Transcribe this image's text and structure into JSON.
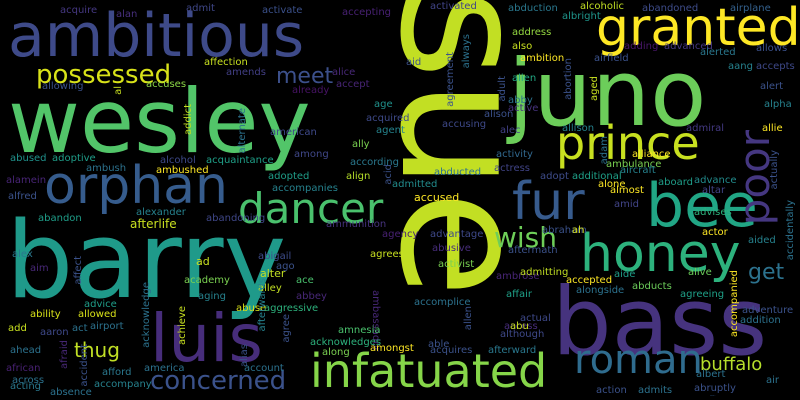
{
  "words": [
    {
      "text": "sue",
      "color": "#c2df23"
    },
    {
      "text": "barry",
      "color": "#1f9a8a"
    },
    {
      "text": "bass",
      "color": "#46337e"
    },
    {
      "text": "wesley",
      "color": "#52c569"
    },
    {
      "text": "juno",
      "color": "#6ccd5a"
    },
    {
      "text": "ambitious",
      "color": "#3e4a89"
    },
    {
      "text": "luis",
      "color": "#472d7b"
    },
    {
      "text": "orphan",
      "color": "#365c8d"
    },
    {
      "text": "infatuated",
      "color": "#86d549"
    },
    {
      "text": "granted",
      "color": "#fde725"
    },
    {
      "text": "bee",
      "color": "#21a685"
    },
    {
      "text": "prince",
      "color": "#c8e020"
    },
    {
      "text": "honey",
      "color": "#2db27d"
    },
    {
      "text": "roman",
      "color": "#2f6c8e"
    },
    {
      "text": "dancer",
      "color": "#4ac16d"
    },
    {
      "text": "fur",
      "color": "#375b8d"
    },
    {
      "text": "poor",
      "color": "#453781"
    },
    {
      "text": "possessed",
      "color": "#d8e219"
    },
    {
      "text": "concerned",
      "color": "#3b528b"
    },
    {
      "text": "wish",
      "color": "#6ece58"
    },
    {
      "text": "meet",
      "color": "#3c508b"
    },
    {
      "text": "get",
      "color": "#2c728e"
    },
    {
      "text": "buffalo",
      "color": "#b5de2b"
    },
    {
      "text": "thug",
      "color": "#c0df25"
    },
    {
      "text": "acquire",
      "color": "#453882"
    },
    {
      "text": "alan",
      "color": "#472f7d"
    },
    {
      "text": "admit",
      "color": "#3f4788"
    },
    {
      "text": "activate",
      "color": "#3b518b"
    },
    {
      "text": "accepting",
      "color": "#482173"
    },
    {
      "text": "activated",
      "color": "#414487"
    },
    {
      "text": "abduction",
      "color": "#2a788e"
    },
    {
      "text": "alcoholic",
      "color": "#c2df23"
    },
    {
      "text": "abandoned",
      "color": "#3e4c8a"
    },
    {
      "text": "airplane",
      "color": "#34618d"
    },
    {
      "text": "albright",
      "color": "#1f958b"
    },
    {
      "text": "address",
      "color": "#93d741"
    },
    {
      "text": "adding",
      "color": "#481769"
    },
    {
      "text": "advanced",
      "color": "#453781"
    },
    {
      "text": "alerted",
      "color": "#2a788e"
    },
    {
      "text": "allows",
      "color": "#3b518b"
    },
    {
      "text": "airfield",
      "color": "#3b528b"
    },
    {
      "text": "aang",
      "color": "#26828e"
    },
    {
      "text": "accepts",
      "color": "#3e4989"
    },
    {
      "text": "ambition",
      "color": "#fde725"
    },
    {
      "text": "alert",
      "color": "#3b528b"
    },
    {
      "text": "accused",
      "color": "#fde725"
    },
    {
      "text": "affection",
      "color": "#c8e020"
    },
    {
      "text": "amends",
      "color": "#423f85"
    },
    {
      "text": "accuses",
      "color": "#8bd646"
    },
    {
      "text": "allowing",
      "color": "#3b528b"
    },
    {
      "text": "alice",
      "color": "#482878"
    },
    {
      "text": "accept",
      "color": "#482576"
    },
    {
      "text": "already",
      "color": "#471365"
    },
    {
      "text": "aid",
      "color": "#3b528b"
    },
    {
      "text": "age",
      "color": "#20928c"
    },
    {
      "text": "acquired",
      "color": "#3e4a89"
    },
    {
      "text": "accusing",
      "color": "#3e4989"
    },
    {
      "text": "agent",
      "color": "#25848e"
    },
    {
      "text": "alison",
      "color": "#3b518b"
    },
    {
      "text": "alec",
      "color": "#424086"
    },
    {
      "text": "abby",
      "color": "#2c728e"
    },
    {
      "text": "alien",
      "color": "#22a884"
    },
    {
      "text": "active",
      "color": "#46337e"
    },
    {
      "text": "allison",
      "color": "#26828e"
    },
    {
      "text": "admiral",
      "color": "#443983"
    },
    {
      "text": "alliance",
      "color": "#fde725"
    },
    {
      "text": "allie",
      "color": "#fde725"
    },
    {
      "text": "american",
      "color": "#3e4989"
    },
    {
      "text": "among",
      "color": "#3f4788"
    },
    {
      "text": "ally",
      "color": "#7ad151"
    },
    {
      "text": "activity",
      "color": "#31688e"
    },
    {
      "text": "actress",
      "color": "#414487"
    },
    {
      "text": "ambulance",
      "color": "#7ad151"
    },
    {
      "text": "aircraft",
      "color": "#26828e"
    },
    {
      "text": "abused",
      "color": "#20928c"
    },
    {
      "text": "adoptive",
      "color": "#1f9e89"
    },
    {
      "text": "alcohol",
      "color": "#3e4989"
    },
    {
      "text": "acquaintance",
      "color": "#1fa088"
    },
    {
      "text": "according",
      "color": "#2a788e"
    },
    {
      "text": "adopted",
      "color": "#1f9e89"
    },
    {
      "text": "accompanies",
      "color": "#26828e"
    },
    {
      "text": "align",
      "color": "#b5de2b"
    },
    {
      "text": "admitted",
      "color": "#228c8d"
    },
    {
      "text": "abducted",
      "color": "#2c728e"
    },
    {
      "text": "adopt",
      "color": "#3e4c8a"
    },
    {
      "text": "additional",
      "color": "#1fa188"
    },
    {
      "text": "almost",
      "color": "#fde725"
    },
    {
      "text": "aboard",
      "color": "#1f9e89"
    },
    {
      "text": "advance",
      "color": "#228c8d"
    },
    {
      "text": "altar",
      "color": "#414487"
    },
    {
      "text": "alpha",
      "color": "#26828e"
    },
    {
      "text": "alamein",
      "color": "#482576"
    },
    {
      "text": "ambush",
      "color": "#2c728e"
    },
    {
      "text": "ambushed",
      "color": "#fde725"
    },
    {
      "text": "alfred",
      "color": "#3b528b"
    },
    {
      "text": "acting",
      "color": "#2a788e"
    },
    {
      "text": "alone",
      "color": "#fde725"
    },
    {
      "text": "amid",
      "color": "#414487"
    },
    {
      "text": "advises",
      "color": "#2db27d"
    },
    {
      "text": "abandon",
      "color": "#1f9e89"
    },
    {
      "text": "alexander",
      "color": "#26828e"
    },
    {
      "text": "abandoning",
      "color": "#3f4788"
    },
    {
      "text": "afterlife",
      "color": "#c8e020"
    },
    {
      "text": "ammunition",
      "color": "#46337e"
    },
    {
      "text": "agency",
      "color": "#482173"
    },
    {
      "text": "advantage",
      "color": "#3e4989"
    },
    {
      "text": "abraham",
      "color": "#3b528b"
    },
    {
      "text": "ah",
      "color": "#d8e219"
    },
    {
      "text": "actor",
      "color": "#fde725"
    },
    {
      "text": "aided",
      "color": "#26828e"
    },
    {
      "text": "alex",
      "color": "#2a788e"
    },
    {
      "text": "aim",
      "color": "#482878"
    },
    {
      "text": "abigail",
      "color": "#3e4c8a"
    },
    {
      "text": "ago",
      "color": "#3b528b"
    },
    {
      "text": "ad",
      "color": "#c8e020"
    },
    {
      "text": "abusive",
      "color": "#472d7b"
    },
    {
      "text": "agrees",
      "color": "#c8e020"
    },
    {
      "text": "aftermath",
      "color": "#3b528b"
    },
    {
      "text": "ambassador",
      "color": "#482878"
    },
    {
      "text": "alter",
      "color": "#c2df23"
    },
    {
      "text": "ace",
      "color": "#4ac16d"
    },
    {
      "text": "activist",
      "color": "#7ad151"
    },
    {
      "text": "ambrose",
      "color": "#482576"
    },
    {
      "text": "affair",
      "color": "#1fa188"
    },
    {
      "text": "access",
      "color": "#472d7b"
    },
    {
      "text": "admitting",
      "color": "#c2df23"
    },
    {
      "text": "accepted",
      "color": "#fde725"
    },
    {
      "text": "abducts",
      "color": "#6ccd5a"
    },
    {
      "text": "aide",
      "color": "#1f9e89"
    },
    {
      "text": "alive",
      "color": "#6ccd5a"
    },
    {
      "text": "accompanied",
      "color": "#fde725"
    },
    {
      "text": "adventure",
      "color": "#3b528b"
    },
    {
      "text": "academy",
      "color": "#7ad151"
    },
    {
      "text": "alley",
      "color": "#c2df23"
    },
    {
      "text": "aging",
      "color": "#26828e"
    },
    {
      "text": "abbey",
      "color": "#482878"
    },
    {
      "text": "aggressive",
      "color": "#2db27d"
    },
    {
      "text": "abuse",
      "color": "#d8e219"
    },
    {
      "text": "advice",
      "color": "#1f9e89"
    },
    {
      "text": "ability",
      "color": "#d8e219"
    },
    {
      "text": "allowed",
      "color": "#d8e219"
    },
    {
      "text": "airport",
      "color": "#2c728e"
    },
    {
      "text": "acknowledge",
      "color": "#2c728e"
    },
    {
      "text": "achieve",
      "color": "#c8e020"
    },
    {
      "text": "alias",
      "color": "#3b528b"
    },
    {
      "text": "afterwards",
      "color": "#26828e"
    },
    {
      "text": "agree",
      "color": "#3b528b"
    },
    {
      "text": "amnesia",
      "color": "#4ac16d"
    },
    {
      "text": "accomplice",
      "color": "#2c728e"
    },
    {
      "text": "allen",
      "color": "#3b528b"
    },
    {
      "text": "alongside",
      "color": "#2c728e"
    },
    {
      "text": "agreeing",
      "color": "#1fa088"
    },
    {
      "text": "addition",
      "color": "#2c728e"
    },
    {
      "text": "add",
      "color": "#c8e020"
    },
    {
      "text": "aaron",
      "color": "#3e4989"
    },
    {
      "text": "act",
      "color": "#2c728e"
    },
    {
      "text": "acknowledges",
      "color": "#2db27d"
    },
    {
      "text": "along",
      "color": "#7ad151"
    },
    {
      "text": "amongst",
      "color": "#fde725"
    },
    {
      "text": "able",
      "color": "#3b528b"
    },
    {
      "text": "abu",
      "color": "#c8e020"
    },
    {
      "text": "although",
      "color": "#3e4989"
    },
    {
      "text": "ahead",
      "color": "#2c728e"
    },
    {
      "text": "afraid",
      "color": "#482878"
    },
    {
      "text": "african",
      "color": "#482173"
    },
    {
      "text": "across",
      "color": "#2c728e"
    },
    {
      "text": "absence",
      "color": "#2c728e"
    },
    {
      "text": "accident",
      "color": "#3b528b"
    },
    {
      "text": "afford",
      "color": "#2a788e"
    },
    {
      "text": "accompany",
      "color": "#26828e"
    },
    {
      "text": "america",
      "color": "#2c728e"
    },
    {
      "text": "account",
      "color": "#2c728e"
    },
    {
      "text": "acquires",
      "color": "#3b528b"
    },
    {
      "text": "afterward",
      "color": "#2a788e"
    },
    {
      "text": "actual",
      "color": "#3e4989"
    },
    {
      "text": "action",
      "color": "#3b528b"
    },
    {
      "text": "admits",
      "color": "#2c728e"
    },
    {
      "text": "abruptly",
      "color": "#3b528b"
    },
    {
      "text": "air",
      "color": "#2c728e"
    },
    {
      "text": "albert",
      "color": "#2c728e"
    },
    {
      "text": "affect",
      "color": "#3b528b"
    },
    {
      "text": "al",
      "color": "#c8e020"
    },
    {
      "text": "addict",
      "color": "#c2df23"
    },
    {
      "text": "alternate",
      "color": "#2c728e"
    },
    {
      "text": "acid",
      "color": "#3b528b"
    },
    {
      "text": "agreement",
      "color": "#3b528b"
    },
    {
      "text": "always",
      "color": "#2c728e"
    },
    {
      "text": "adult",
      "color": "#3b528b"
    },
    {
      "text": "also",
      "color": "#c8e020"
    },
    {
      "text": "abortion",
      "color": "#3b528b"
    },
    {
      "text": "aged",
      "color": "#c8e020"
    },
    {
      "text": "adam",
      "color": "#2c728e"
    },
    {
      "text": "accidentally",
      "color": "#2c728e"
    },
    {
      "text": "actually",
      "color": "#3b528b"
    },
    {
      "text": "alcatraz",
      "color": "#2c728e"
    },
    {
      "text": "alternative",
      "color": "#3b528b"
    }
  ]
}
